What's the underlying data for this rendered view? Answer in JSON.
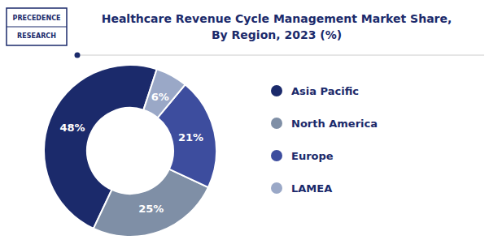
{
  "chart_data": {
    "type": "donut",
    "title": "Healthcare Revenue Cycle Management Market Share,\nBy Region, 2023 (%)",
    "categories": [
      "Asia Pacific",
      "North America",
      "Europe",
      "LAMEA"
    ],
    "values": [
      48,
      25,
      21,
      6
    ],
    "value_labels": [
      "48%",
      "25%",
      "21%",
      "6%"
    ],
    "colors": [
      "#1b2a6b",
      "#7f8fa6",
      "#3d4d9e",
      "#9aa8c7"
    ],
    "data_labels": true,
    "legend": "right",
    "annotations": [
      "PRECEDENCE",
      "RESEARCH"
    ]
  }
}
